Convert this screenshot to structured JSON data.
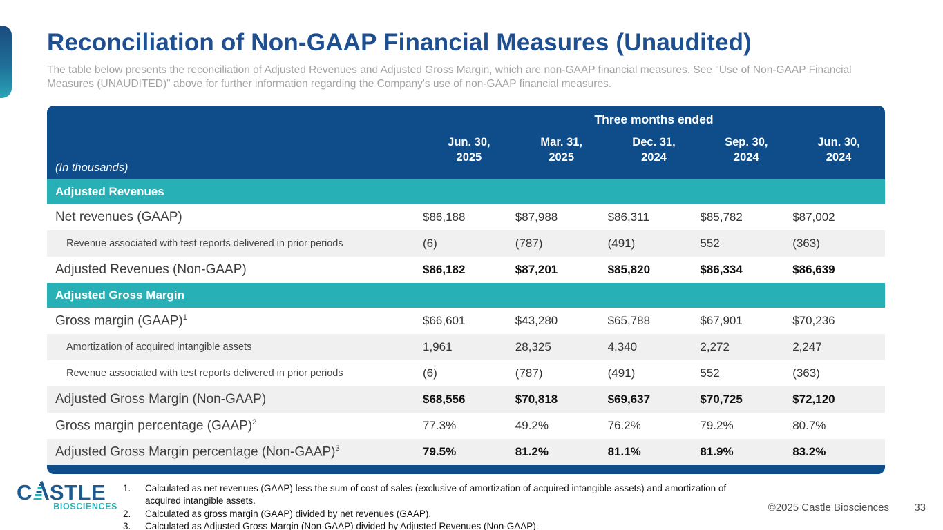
{
  "slide": {
    "title": "Reconciliation of Non-GAAP Financial Measures (Unaudited)",
    "subtitle": "The table below presents the reconciliation of Adjusted Revenues and Adjusted Gross Margin, which are non-GAAP financial measures. See \"Use of Non-GAAP Financial Measures (UNAUDITED)\" above for further information regarding the Company's use of non-GAAP financial measures."
  },
  "table": {
    "units_label": "(In thousands)",
    "period_header": "Three months ended",
    "columns": [
      {
        "line1": "Jun. 30,",
        "line2": "2025"
      },
      {
        "line1": "Mar. 31,",
        "line2": "2025"
      },
      {
        "line1": "Dec. 31,",
        "line2": "2024"
      },
      {
        "line1": "Sep. 30,",
        "line2": "2024"
      },
      {
        "line1": "Jun. 30,",
        "line2": "2024"
      }
    ],
    "sections": [
      {
        "header": "Adjusted Revenues",
        "rows": [
          {
            "label": "Net revenues (GAAP)",
            "sup": "",
            "style": "main",
            "shaded": false,
            "bold": false,
            "values": [
              "$86,188",
              "$87,988",
              "$86,311",
              "$85,782",
              "$87,002"
            ]
          },
          {
            "label": "Revenue associated with test reports delivered in prior periods",
            "sup": "",
            "style": "sub",
            "shaded": true,
            "bold": false,
            "values": [
              "(6)",
              "(787)",
              "(491)",
              "552",
              "(363)"
            ]
          },
          {
            "label": "Adjusted Revenues (Non-GAAP)",
            "sup": "",
            "style": "main",
            "shaded": false,
            "bold": true,
            "values": [
              "$86,182",
              "$87,201",
              "$85,820",
              "$86,334",
              "$86,639"
            ]
          }
        ]
      },
      {
        "header": "Adjusted Gross Margin",
        "rows": [
          {
            "label": "Gross margin (GAAP)",
            "sup": "1",
            "style": "main",
            "shaded": false,
            "bold": false,
            "values": [
              "$66,601",
              "$43,280",
              "$65,788",
              "$67,901",
              "$70,236"
            ]
          },
          {
            "label": "Amortization of acquired intangible assets",
            "sup": "",
            "style": "sub",
            "shaded": true,
            "bold": false,
            "values": [
              "1,961",
              "28,325",
              "4,340",
              "2,272",
              "2,247"
            ]
          },
          {
            "label": "Revenue associated with test reports delivered in prior periods",
            "sup": "",
            "style": "sub",
            "shaded": false,
            "bold": false,
            "values": [
              "(6)",
              "(787)",
              "(491)",
              "552",
              "(363)"
            ]
          },
          {
            "label": "Adjusted Gross Margin (Non-GAAP)",
            "sup": "",
            "style": "main",
            "shaded": true,
            "bold": true,
            "values": [
              "$68,556",
              "$70,818",
              "$69,637",
              "$70,725",
              "$72,120"
            ]
          },
          {
            "label": "Gross margin percentage (GAAP)",
            "sup": "2",
            "style": "main",
            "shaded": false,
            "bold": false,
            "values": [
              "77.3%",
              "49.2%",
              "76.2%",
              "79.2%",
              "80.7%"
            ]
          },
          {
            "label": "Adjusted Gross Margin percentage (Non-GAAP)",
            "sup": "3",
            "style": "main",
            "shaded": true,
            "bold": true,
            "values": [
              "79.5%",
              "81.2%",
              "81.1%",
              "81.9%",
              "83.2%"
            ]
          }
        ]
      }
    ]
  },
  "footnotes": [
    {
      "num": "1.",
      "text": "Calculated as net revenues (GAAP) less the sum of cost of sales (exclusive of amortization of acquired intangible assets) and amortization of acquired intangible assets."
    },
    {
      "num": "2.",
      "text": "Calculated as gross margin (GAAP) divided by net revenues (GAAP)."
    },
    {
      "num": "3.",
      "text": "Calculated as Adjusted Gross Margin (Non-GAAP) divided by Adjusted Revenues (Non-GAAP)."
    }
  ],
  "footer": {
    "logo_top": "STLE",
    "logo_first_letter": "C",
    "logo_bottom": "BIOSCIENCES",
    "copyright": "©2025 Castle Biosciences",
    "page_number": "33"
  },
  "colors": {
    "header_blue": "#0e4d8a",
    "teal": "#27b1b6",
    "title_blue": "#1d4f91",
    "row_shade": "#f0f0f1",
    "logo_blue": "#1d5a8f",
    "subtitle_gray": "#a3a3a3"
  }
}
